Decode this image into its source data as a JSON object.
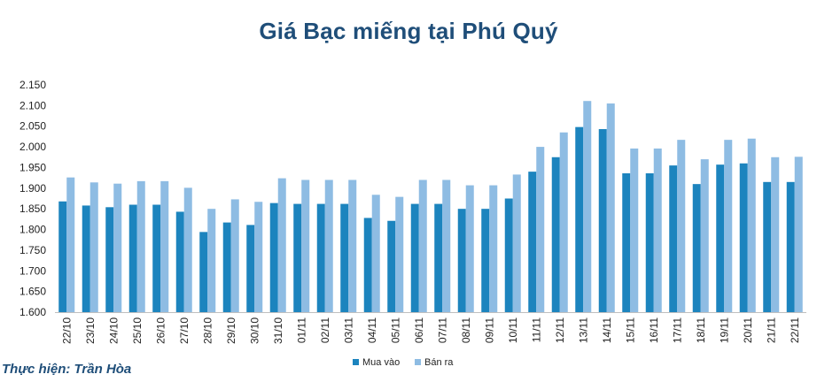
{
  "chart_data": {
    "type": "bar",
    "title": "Giá Bạc miếng tại Phú Quý",
    "xlabel": "",
    "ylabel": "",
    "ylim": [
      1600,
      2150
    ],
    "yticks": [
      1600,
      1650,
      1700,
      1750,
      1800,
      1850,
      1900,
      1950,
      2000,
      2050,
      2100,
      2150
    ],
    "ytick_labels": [
      "1.600",
      "1.650",
      "1.700",
      "1.750",
      "1.800",
      "1.850",
      "1.900",
      "1.950",
      "2.000",
      "2.050",
      "2.100",
      "2.150"
    ],
    "grid": false,
    "legend": "bottom",
    "categories": [
      "22/10",
      "23/10",
      "24/10",
      "25/10",
      "26/10",
      "27/10",
      "28/10",
      "29/10",
      "30/10",
      "31/10",
      "01/11",
      "02/11",
      "03/11",
      "04/11",
      "05/11",
      "06/11",
      "07/11",
      "08/11",
      "09/11",
      "10/11",
      "11/11",
      "12/11",
      "13/11",
      "14/11",
      "15/11",
      "16/11",
      "17/11",
      "18/11",
      "19/11",
      "20/11",
      "21/11",
      "22/11"
    ],
    "series": [
      {
        "name": "Mua vào",
        "color": "#1C84BE",
        "values": [
          1868,
          1858,
          1854,
          1860,
          1860,
          1843,
          1794,
          1817,
          1811,
          1864,
          1862,
          1862,
          1862,
          1828,
          1821,
          1862,
          1862,
          1850,
          1850,
          1875,
          1940,
          1975,
          2048,
          2043,
          1936,
          1936,
          1955,
          1910,
          1957,
          1960,
          1915,
          1915
        ]
      },
      {
        "name": "Bán ra",
        "color": "#8EBCE3",
        "values": [
          1926,
          1914,
          1911,
          1917,
          1917,
          1901,
          1850,
          1873,
          1867,
          1924,
          1920,
          1920,
          1920,
          1884,
          1879,
          1920,
          1920,
          1907,
          1907,
          1933,
          2000,
          2035,
          2111,
          2105,
          1996,
          1996,
          2017,
          1970,
          2017,
          2020,
          1975,
          1976
        ]
      }
    ]
  },
  "credit": "Thực hiện: Trần Hòa"
}
